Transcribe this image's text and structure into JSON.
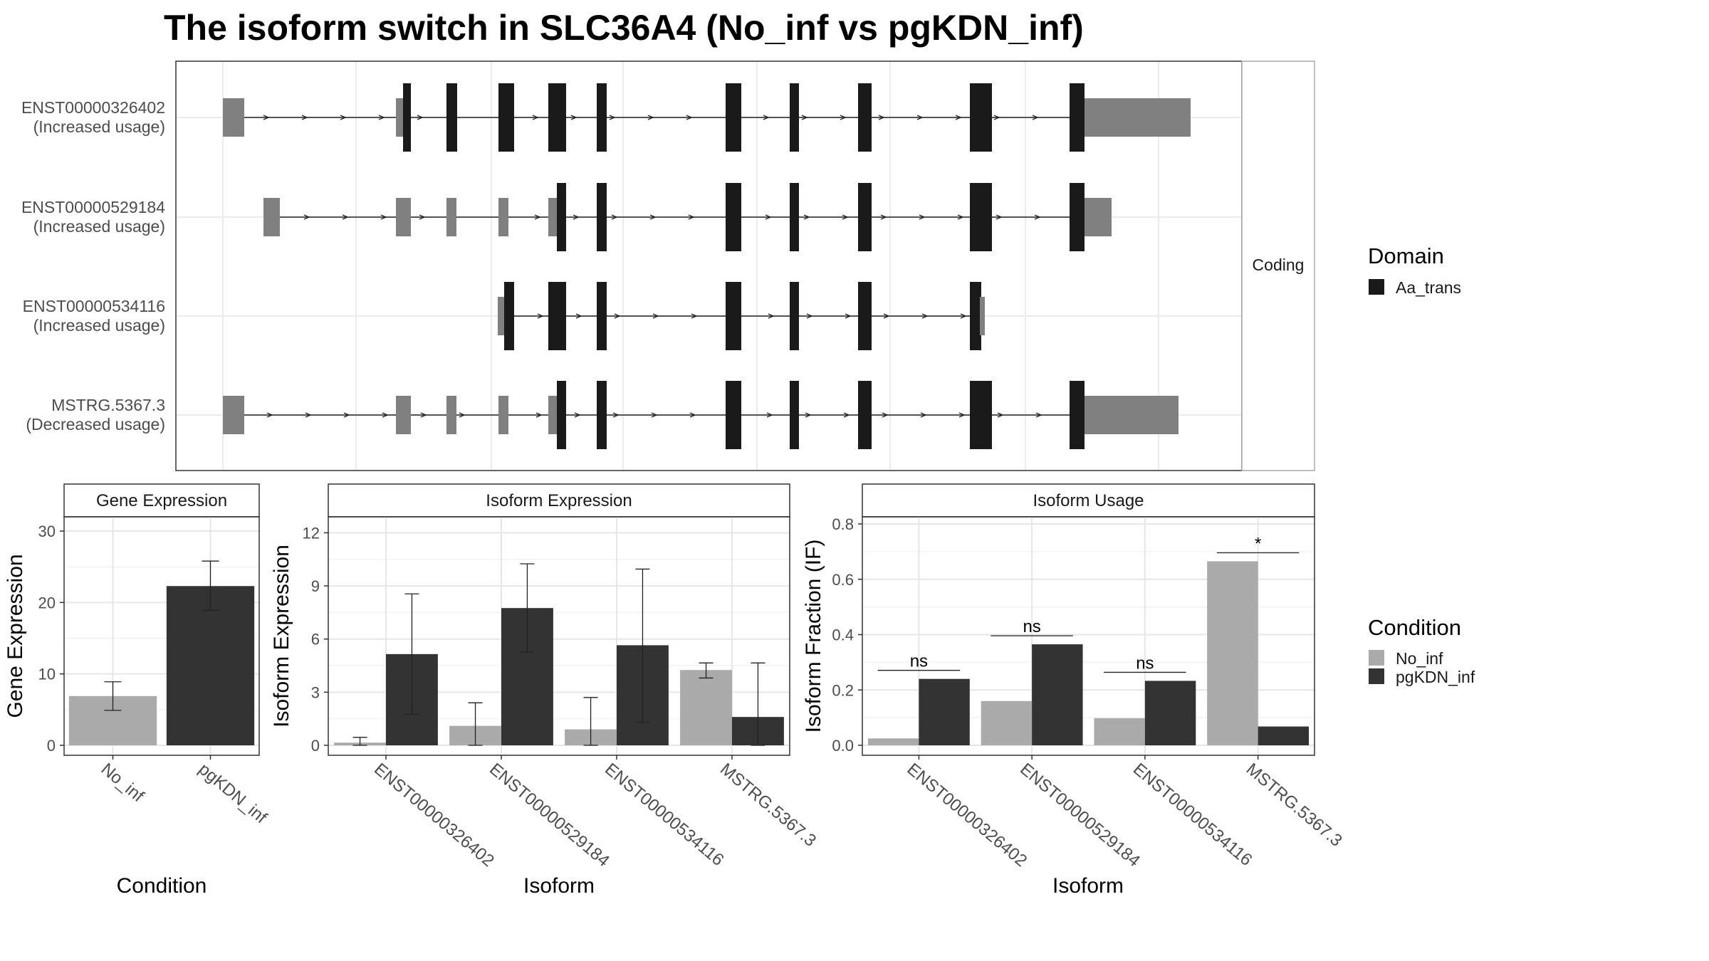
{
  "title": "The isoform switch in SLC36A4 (No_inf vs pgKDN_inf)",
  "structure": {
    "strip_label": "Coding",
    "transcripts": [
      {
        "id": "ENST00000326402",
        "usage": "(Increased usage)"
      },
      {
        "id": "ENST00000529184",
        "usage": "(Increased usage)"
      },
      {
        "id": "ENST00000534116",
        "usage": "(Increased usage)"
      },
      {
        "id": "MSTRG.5367.3",
        "usage": "(Decreased usage)"
      }
    ]
  },
  "legend_domain": {
    "title": "Domain",
    "items": [
      {
        "label": "Aa_trans",
        "color": "#1a1a1a"
      }
    ]
  },
  "legend_condition": {
    "title": "Condition",
    "items": [
      {
        "label": "No_inf",
        "color": "#aaaaaa"
      },
      {
        "label": "pgKDN_inf",
        "color": "#333333"
      }
    ]
  },
  "colors": {
    "no_inf": "#aaaaaa",
    "pgkdn_inf": "#333333",
    "domain": "#1a1a1a",
    "noncoding_exon": "#808080"
  },
  "chart_data": [
    {
      "type": "bar",
      "panel": "Gene Expression",
      "categories": [
        "No_inf",
        "pgKDN_inf"
      ],
      "values": [
        6.9,
        22.3
      ],
      "err_low": [
        4.9,
        18.9
      ],
      "err_high": [
        8.9,
        25.8
      ],
      "xlabel": "Condition",
      "ylabel": "Gene Expression",
      "ylim": [
        0,
        31
      ],
      "yticks": [
        0,
        10,
        20,
        30
      ]
    },
    {
      "type": "bar",
      "panel": "Isoform Expression",
      "categories": [
        "ENST00000326402",
        "ENST00000529184",
        "ENST00000534116",
        "MSTRG.5367.3"
      ],
      "series": [
        {
          "name": "No_inf",
          "values": [
            0.15,
            1.1,
            0.9,
            4.25
          ],
          "err_low": [
            0.0,
            0.0,
            0.0,
            3.8
          ],
          "err_high": [
            0.45,
            2.4,
            2.7,
            4.65
          ]
        },
        {
          "name": "pgKDN_inf",
          "values": [
            5.15,
            7.75,
            5.65,
            1.6
          ],
          "err_low": [
            1.75,
            5.25,
            1.3,
            0.0
          ],
          "err_high": [
            8.55,
            10.25,
            9.95,
            4.65
          ]
        }
      ],
      "xlabel": "Isoform",
      "ylabel": "Isoform Expression",
      "ylim": [
        0,
        12.5
      ],
      "yticks": [
        0,
        3,
        6,
        9,
        12
      ]
    },
    {
      "type": "bar",
      "panel": "Isoform Usage",
      "categories": [
        "ENST00000326402",
        "ENST00000529184",
        "ENST00000534116",
        "MSTRG.5367.3"
      ],
      "series": [
        {
          "name": "No_inf",
          "values": [
            0.025,
            0.16,
            0.098,
            0.665
          ]
        },
        {
          "name": "pgKDN_inf",
          "values": [
            0.24,
            0.365,
            0.233,
            0.068
          ]
        }
      ],
      "significance": [
        "ns",
        "ns",
        "ns",
        "*"
      ],
      "xlabel": "Isoform",
      "ylabel": "Isoform Fraction (IF)",
      "ylim": [
        0,
        0.8
      ],
      "yticks": [
        "0.0",
        "0.2",
        "0.4",
        "0.6",
        "0.8"
      ]
    }
  ]
}
